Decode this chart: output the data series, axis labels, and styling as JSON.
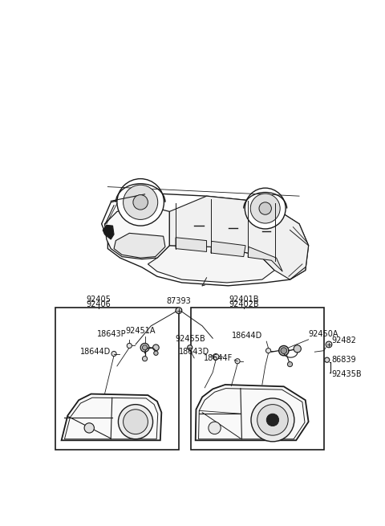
{
  "bg_color": "#ffffff",
  "line_color": "#1a1a1a",
  "text_color": "#111111",
  "labels": {
    "left_top1": "92405",
    "left_top2": "92406",
    "left_mid1": "92451A",
    "left_mid2": "18643P",
    "left_bot": "18644D",
    "center1": "87393",
    "center2": "92455B",
    "right_top1": "92401B",
    "right_top2": "92402B",
    "right_mid1": "92450A",
    "right_mid2": "18644D",
    "right_mid3": "18643D",
    "right_mid4": "18644F",
    "right_r1": "92482",
    "right_r2": "86839",
    "right_r3": "92435B"
  },
  "fs": 7.0,
  "fs_small": 6.5
}
